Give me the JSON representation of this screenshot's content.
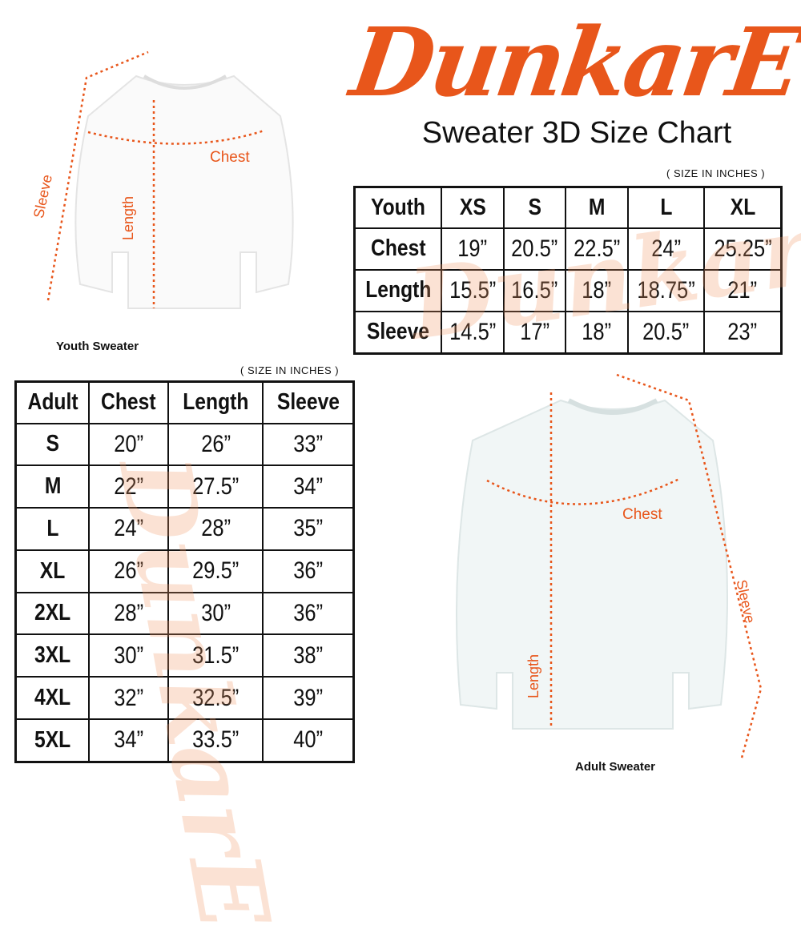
{
  "brand": {
    "logo": "DunkarE",
    "color": "#e8561b"
  },
  "title": "Sweater 3D Size Chart",
  "youth": {
    "note": "( SIZE IN INCHES )",
    "caption": "Youth Sweater",
    "labels": {
      "chest": "Chest",
      "length": "Length",
      "sleeve": "Sleeve"
    },
    "headers": [
      "Youth",
      "XS",
      "S",
      "M",
      "L",
      "XL"
    ],
    "rows": [
      [
        "Chest",
        "19”",
        "20.5”",
        "22.5”",
        "24”",
        "25.25”"
      ],
      [
        "Length",
        "15.5”",
        "16.5”",
        "18”",
        "18.75”",
        "21”"
      ],
      [
        "Sleeve",
        "14.5”",
        "17”",
        "18”",
        "20.5”",
        "23”"
      ]
    ]
  },
  "adult": {
    "note": "( SIZE IN INCHES )",
    "caption": "Adult Sweater",
    "labels": {
      "chest": "Chest",
      "length": "Length",
      "sleeve": "Sleeve"
    },
    "headers": [
      "Adult",
      "Chest",
      "Length",
      "Sleeve"
    ],
    "rows": [
      [
        "S",
        "20”",
        "26”",
        "33”"
      ],
      [
        "M",
        "22”",
        "27.5”",
        "34”"
      ],
      [
        "L",
        "24”",
        "28”",
        "35”"
      ],
      [
        "XL",
        "26”",
        "29.5”",
        "36”"
      ],
      [
        "2XL",
        "28”",
        "30”",
        "36”"
      ],
      [
        "3XL",
        "30”",
        "31.5”",
        "38”"
      ],
      [
        "4XL",
        "32”",
        "32.5”",
        "39”"
      ],
      [
        "5XL",
        "34”",
        "33.5”",
        "40”"
      ]
    ]
  }
}
